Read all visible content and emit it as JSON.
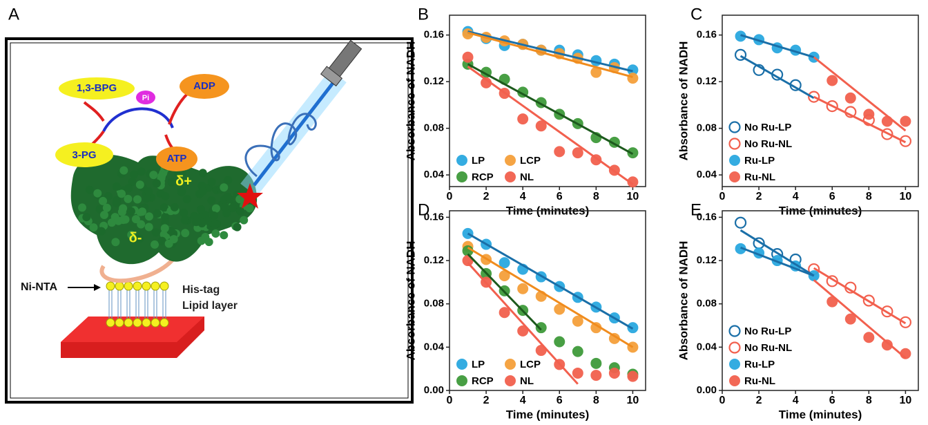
{
  "diagram": {
    "panel": "A",
    "bpg": "1,3-BPG",
    "pi": "Pi",
    "adp": "ADP",
    "pg3": "3-PG",
    "atp": "ATP",
    "delta_plus": "δ+",
    "delta_minus": "δ-",
    "his_tag": "His-tag",
    "ni_nta": "Ni-NTA",
    "lipid_layer": "Lipid layer"
  },
  "chart_data": [
    {
      "type": "scatter",
      "panel": "B",
      "x_label": "Time (minutes)",
      "y_label": "Absorbance of NADH",
      "xlim": [
        0,
        10.7
      ],
      "ylim": [
        0.03,
        0.177
      ],
      "xticks": [
        0,
        2,
        4,
        6,
        8,
        10
      ],
      "yticks": [
        0.04,
        0.08,
        0.12,
        0.16
      ],
      "legend": "lower left",
      "legend_columns": 2,
      "series": [
        {
          "name": "LP",
          "color": "#2aa8e0",
          "line_color": "#1a6fa8",
          "filled": true,
          "x": [
            1,
            2,
            3,
            4,
            5,
            6,
            7,
            8,
            9,
            10
          ],
          "values": [
            0.163,
            0.157,
            0.151,
            0.152,
            0.147,
            0.147,
            0.143,
            0.138,
            0.135,
            0.13
          ],
          "fit_x": [
            1,
            10
          ],
          "fit_y": [
            0.163,
            0.129
          ]
        },
        {
          "name": "LCP",
          "color": "#f5a03a",
          "line_color": "#f08c1e",
          "filled": true,
          "x": [
            1,
            2,
            3,
            4,
            5,
            6,
            7,
            8,
            9,
            10
          ],
          "values": [
            0.161,
            0.158,
            0.155,
            0.152,
            0.147,
            0.144,
            0.14,
            0.128,
            0.132,
            0.123
          ],
          "fit_x": [
            1,
            10
          ],
          "fit_y": [
            0.162,
            0.124
          ]
        },
        {
          "name": "RCP",
          "color": "#3f9a3a",
          "line_color": "#1d5a1d",
          "filled": true,
          "x": [
            1,
            2,
            3,
            4,
            5,
            6,
            7,
            8,
            9,
            10
          ],
          "values": [
            0.135,
            0.128,
            0.122,
            0.111,
            0.102,
            0.092,
            0.084,
            0.072,
            0.068,
            0.059
          ],
          "fit_x": [
            1,
            10
          ],
          "fit_y": [
            0.135,
            0.058
          ]
        },
        {
          "name": "NL",
          "color": "#f2604e",
          "line_color": "#f2604e",
          "filled": true,
          "x": [
            1,
            2,
            3,
            4,
            5,
            6,
            7,
            8,
            9,
            10
          ],
          "values": [
            0.141,
            0.119,
            0.11,
            0.088,
            0.082,
            0.06,
            0.059,
            0.053,
            0.044,
            0.034
          ],
          "fit_x": [
            1,
            10
          ],
          "fit_y": [
            0.133,
            0.032
          ]
        }
      ]
    },
    {
      "type": "scatter",
      "panel": "C",
      "x_label": "Time (minutes)",
      "y_label": "Absorbance of NADH",
      "xlim": [
        0,
        10.7
      ],
      "ylim": [
        0.03,
        0.177
      ],
      "xticks": [
        0,
        2,
        4,
        6,
        8,
        10
      ],
      "yticks": [
        0.04,
        0.08,
        0.12,
        0.16
      ],
      "legend": "lower left",
      "legend_columns": 1,
      "series": [
        {
          "name": "No Ru-LP",
          "color": "#1a6fa8",
          "line_color": "#1a6fa8",
          "filled": false,
          "x": [
            1,
            2,
            3,
            4
          ],
          "values": [
            0.143,
            0.13,
            0.126,
            0.117
          ],
          "fit_x": [
            1,
            5
          ],
          "fit_y": [
            0.142,
            0.106
          ]
        },
        {
          "name": "No Ru-NL",
          "color": "#f2604e",
          "line_color": "#f2604e",
          "filled": false,
          "x": [
            5,
            6,
            7,
            8,
            9,
            10
          ],
          "values": [
            0.107,
            0.099,
            0.094,
            0.087,
            0.075,
            0.069
          ],
          "fit_x": [
            5,
            10
          ],
          "fit_y": [
            0.107,
            0.068
          ]
        },
        {
          "name": "Ru-LP",
          "color": "#2aa8e0",
          "line_color": "#1a6fa8",
          "filled": true,
          "x": [
            1,
            2,
            3,
            4,
            5
          ],
          "values": [
            0.159,
            0.156,
            0.149,
            0.147,
            0.141
          ],
          "fit_x": [
            1,
            5
          ],
          "fit_y": [
            0.16,
            0.141
          ]
        },
        {
          "name": "Ru-NL",
          "color": "#f2604e",
          "line_color": "#f2604e",
          "filled": true,
          "x": [
            6,
            7,
            8,
            9,
            10
          ],
          "values": [
            0.121,
            0.106,
            0.092,
            0.086,
            0.086
          ],
          "fit_x": [
            5,
            10
          ],
          "fit_y": [
            0.141,
            0.078
          ]
        }
      ]
    },
    {
      "type": "scatter",
      "panel": "D",
      "x_label": "Time (minutes)",
      "y_label": "Absorbance of NADH",
      "xlim": [
        0,
        10.7
      ],
      "ylim": [
        0,
        0.166
      ],
      "xticks": [
        0,
        2,
        4,
        6,
        8,
        10
      ],
      "yticks": [
        {
          "value": 0,
          "label": "0.00"
        },
        0.04,
        0.08,
        0.12,
        0.16
      ],
      "legend": "lower left",
      "legend_columns": 2,
      "series": [
        {
          "name": "LP",
          "color": "#2aa8e0",
          "line_color": "#1a6fa8",
          "filled": true,
          "x": [
            1,
            2,
            3,
            4,
            5,
            6,
            7,
            8,
            9,
            10
          ],
          "values": [
            0.145,
            0.135,
            0.118,
            0.112,
            0.105,
            0.096,
            0.086,
            0.077,
            0.067,
            0.058
          ],
          "fit_x": [
            1,
            10
          ],
          "fit_y": [
            0.145,
            0.057
          ]
        },
        {
          "name": "LCP",
          "color": "#f5a03a",
          "line_color": "#f08c1e",
          "filled": true,
          "x": [
            1,
            2,
            3,
            4,
            5,
            6,
            7,
            8,
            9,
            10
          ],
          "values": [
            0.133,
            0.121,
            0.106,
            0.094,
            0.087,
            0.075,
            0.064,
            0.058,
            0.048,
            0.04
          ],
          "fit_x": [
            1,
            10
          ],
          "fit_y": [
            0.132,
            0.04
          ]
        },
        {
          "name": "RCP",
          "color": "#3f9a3a",
          "line_color": "#1d5a1d",
          "filled": true,
          "x": [
            1,
            2,
            3,
            4,
            5,
            6,
            7,
            8,
            9,
            10
          ],
          "values": [
            0.129,
            0.108,
            0.092,
            0.074,
            0.058,
            0.045,
            0.036,
            0.025,
            0.021,
            0.015
          ],
          "fit_x": [
            1,
            5
          ],
          "fit_y": [
            0.126,
            0.056
          ]
        },
        {
          "name": "NL",
          "color": "#f2604e",
          "line_color": "#f2604e",
          "filled": true,
          "x": [
            1,
            2,
            3,
            4,
            5,
            6,
            7,
            8,
            9,
            10
          ],
          "values": [
            0.12,
            0.1,
            0.072,
            0.055,
            0.037,
            0.024,
            0.016,
            0.014,
            0.016,
            0.013
          ],
          "fit_x": [
            1,
            7
          ],
          "fit_y": [
            0.118,
            0.006
          ]
        }
      ]
    },
    {
      "type": "scatter",
      "panel": "E",
      "x_label": "Time (minutes)",
      "y_label": "Absorbance of NADH",
      "xlim": [
        0,
        10.7
      ],
      "ylim": [
        0,
        0.166
      ],
      "xticks": [
        0,
        2,
        4,
        6,
        8,
        10
      ],
      "yticks": [
        {
          "value": 0,
          "label": "0.00"
        },
        0.04,
        0.08,
        0.12,
        0.16
      ],
      "legend": "lower left",
      "legend_columns": 1,
      "series": [
        {
          "name": "No Ru-LP",
          "color": "#1a6fa8",
          "line_color": "#1a6fa8",
          "filled": false,
          "x": [
            1,
            2,
            3,
            4
          ],
          "values": [
            0.155,
            0.136,
            0.126,
            0.121
          ],
          "fit_x": [
            1,
            5
          ],
          "fit_y": [
            0.148,
            0.106
          ]
        },
        {
          "name": "No Ru-NL",
          "color": "#f2604e",
          "line_color": "#f2604e",
          "filled": false,
          "x": [
            5,
            6,
            7,
            8,
            9,
            10
          ],
          "values": [
            0.112,
            0.101,
            0.095,
            0.083,
            0.073,
            0.063
          ],
          "fit_x": [
            5,
            10
          ],
          "fit_y": [
            0.113,
            0.062
          ]
        },
        {
          "name": "Ru-LP",
          "color": "#2aa8e0",
          "line_color": "#1a6fa8",
          "filled": true,
          "x": [
            1,
            2,
            3,
            4,
            5
          ],
          "values": [
            0.131,
            0.127,
            0.12,
            0.115,
            0.106
          ],
          "fit_x": [
            1,
            5
          ],
          "fit_y": [
            0.132,
            0.106
          ]
        },
        {
          "name": "Ru-NL",
          "color": "#f2604e",
          "line_color": "#f2604e",
          "filled": true,
          "x": [
            6,
            7,
            8,
            9,
            10
          ],
          "values": [
            0.082,
            0.066,
            0.049,
            0.042,
            0.034
          ],
          "fit_x": [
            5,
            10
          ],
          "fit_y": [
            0.102,
            0.03
          ]
        }
      ]
    }
  ]
}
